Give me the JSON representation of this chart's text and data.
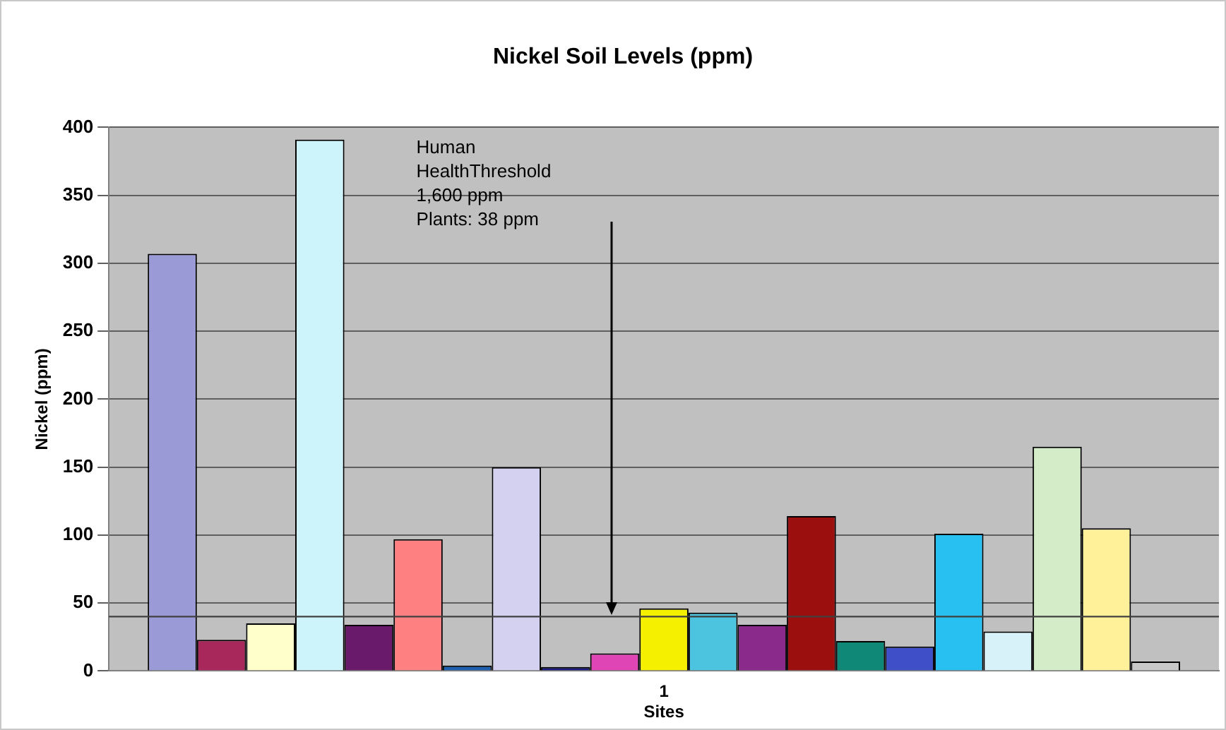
{
  "chart_data": {
    "type": "bar",
    "title": "Nickel Soil Levels (ppm)",
    "xlabel": "Sites",
    "ylabel": "Nickel (ppm)",
    "categories": [
      "1"
    ],
    "series": [
      {
        "color": "#9a9ad6",
        "values": [
          307
        ]
      },
      {
        "color": "#a8285c",
        "values": [
          23
        ]
      },
      {
        "color": "#ffffcc",
        "values": [
          35
        ]
      },
      {
        "color": "#ccf4fa",
        "values": [
          391
        ]
      },
      {
        "color": "#6a1a6a",
        "values": [
          34
        ]
      },
      {
        "color": "#ff8080",
        "values": [
          97
        ]
      },
      {
        "color": "#1f5fb0",
        "values": [
          4
        ]
      },
      {
        "color": "#d4d0f0",
        "values": [
          150
        ]
      },
      {
        "color": "#1a1a80",
        "values": [
          3
        ]
      },
      {
        "color": "#e045b5",
        "values": [
          13
        ]
      },
      {
        "color": "#f5f000",
        "values": [
          46
        ]
      },
      {
        "color": "#4cc3df",
        "values": [
          43
        ]
      },
      {
        "color": "#8a2a8a",
        "values": [
          34
        ]
      },
      {
        "color": "#9b0f0f",
        "values": [
          114
        ]
      },
      {
        "color": "#108878",
        "values": [
          22
        ]
      },
      {
        "color": "#3f4fc8",
        "values": [
          18
        ]
      },
      {
        "color": "#27c0f0",
        "values": [
          101
        ]
      },
      {
        "color": "#d8f2fa",
        "values": [
          29
        ]
      },
      {
        "color": "#d4ecc8",
        "values": [
          165
        ]
      },
      {
        "color": "#fff09a",
        "values": [
          105
        ]
      },
      {
        "color": "#c8c8c8",
        "values": [
          7
        ]
      }
    ],
    "ylim": [
      0,
      400
    ],
    "yticks": [
      0,
      50,
      100,
      150,
      200,
      250,
      300,
      350,
      400
    ],
    "grid": "y",
    "ref_lines": [
      {
        "axis": "y",
        "value": 40,
        "color": "#404040"
      }
    ],
    "annotations": [
      "Human\nHealthThreshold\n1,600 ppm\nPlants: 38 ppm"
    ]
  }
}
